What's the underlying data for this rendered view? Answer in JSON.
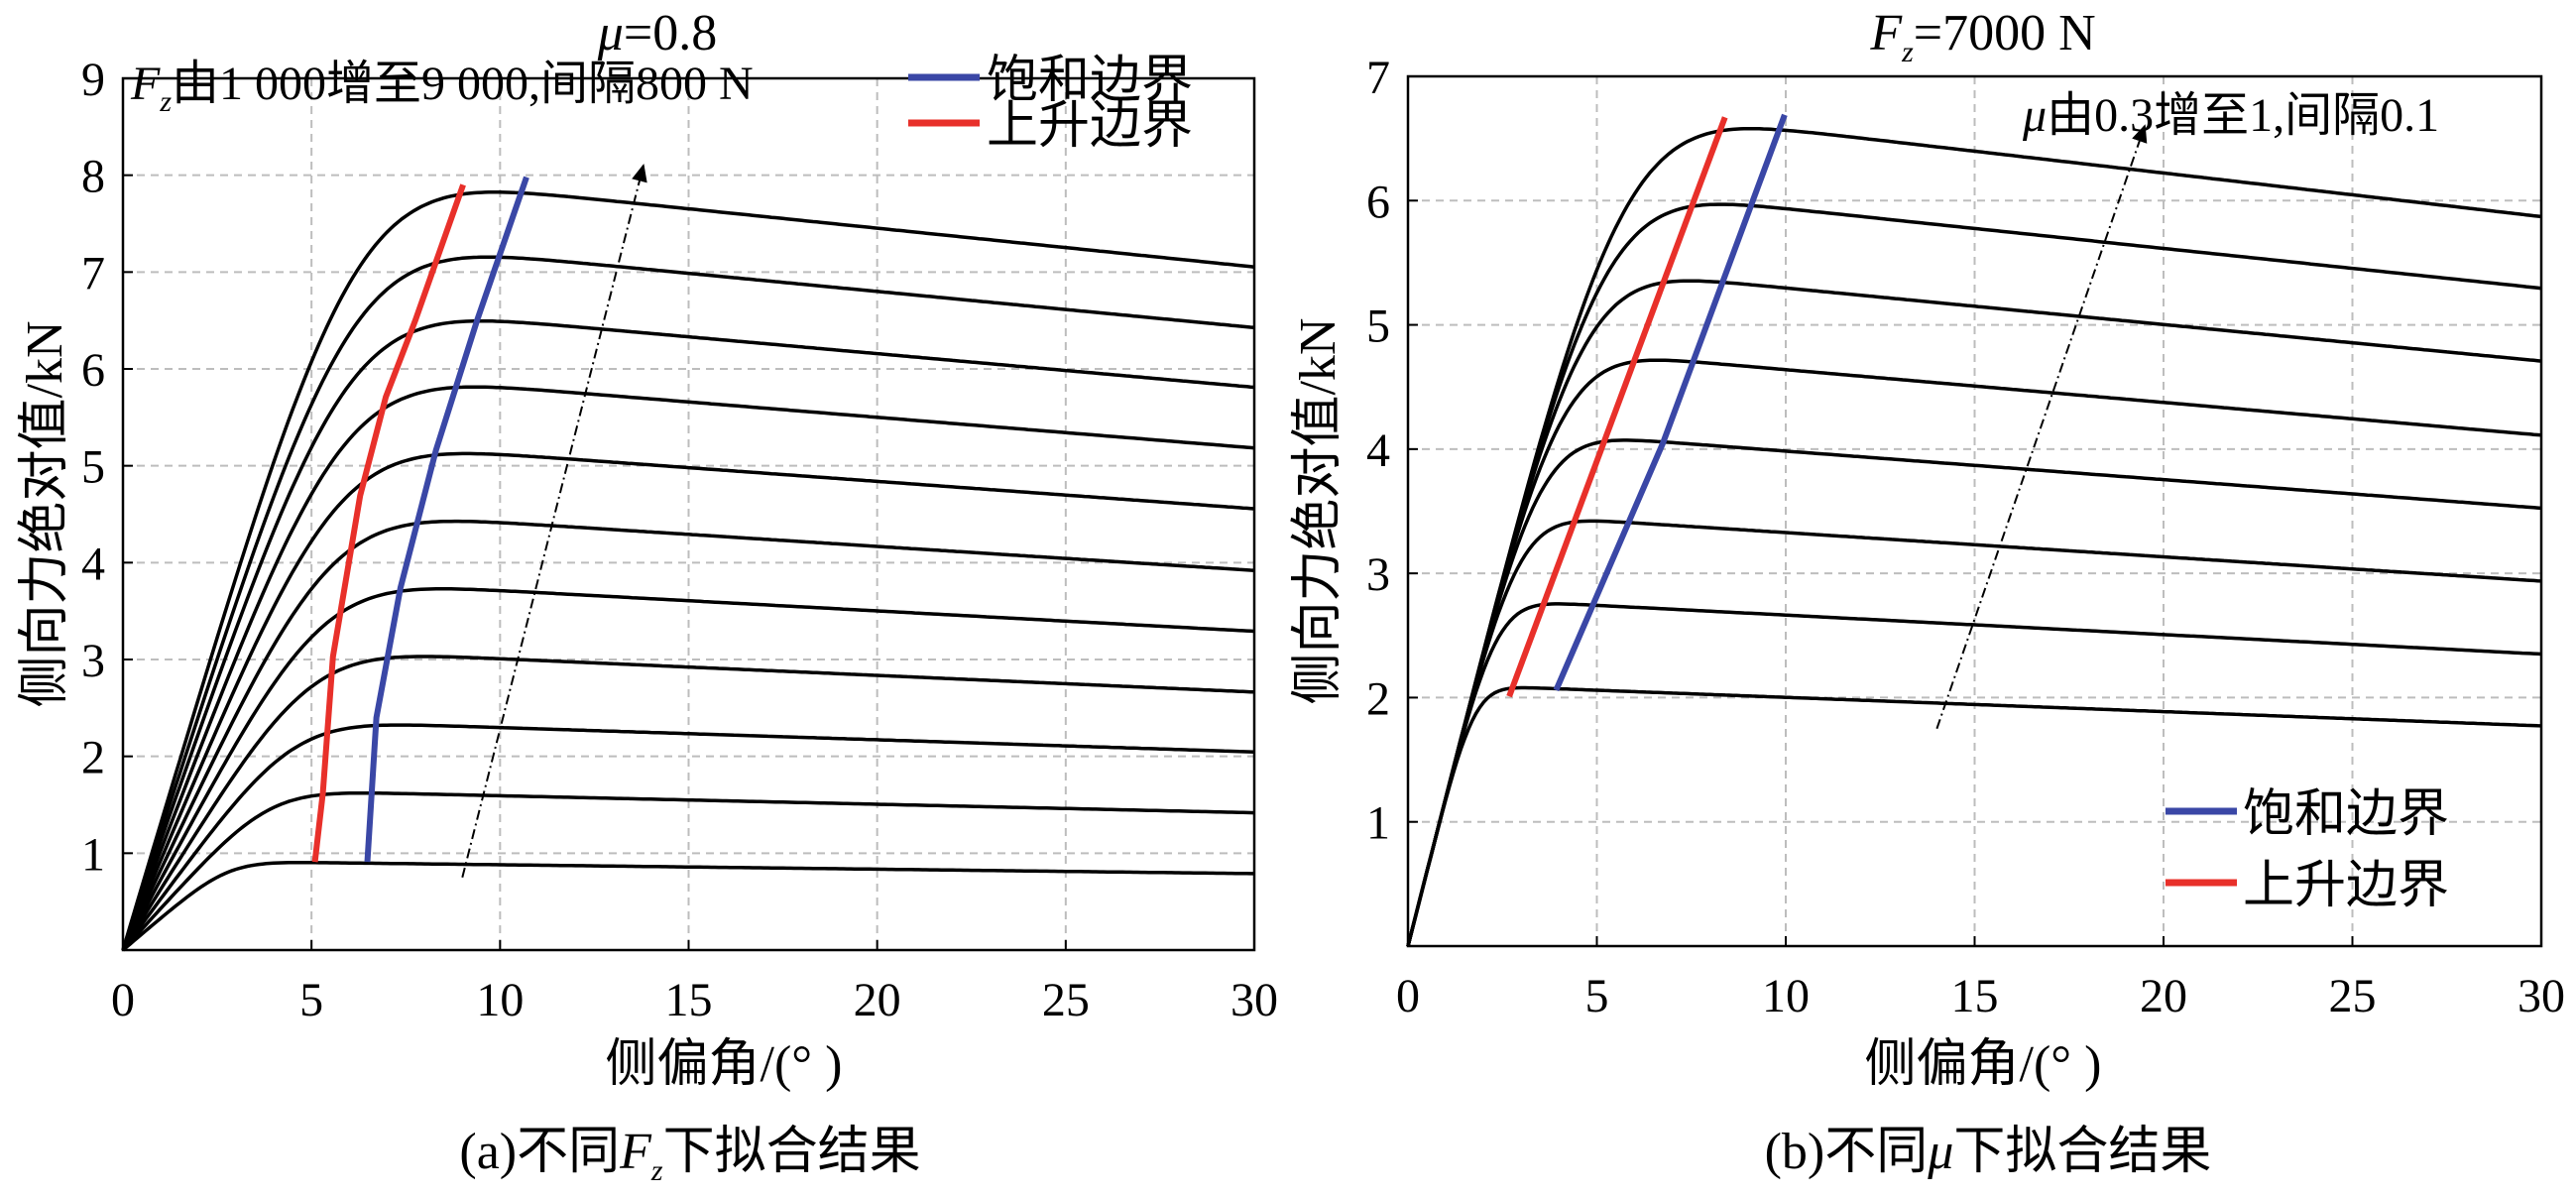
{
  "chart_data": [
    {
      "type": "line",
      "title": "μ=0.8",
      "title_symbol": "μ",
      "title_value": "=0.8",
      "xlabel": "侧偏角/(°  )",
      "ylabel": "侧向力绝对值/kN",
      "caption_prefix": "(a)不同",
      "caption_symbol": "F",
      "caption_sub": "z",
      "caption_suffix": "下拟合结果",
      "xlim": [
        0,
        30
      ],
      "ylim": [
        0,
        9
      ],
      "xticks": [
        "0",
        "5",
        "10",
        "15",
        "20",
        "25",
        "30"
      ],
      "yticks": [
        "1",
        "2",
        "3",
        "4",
        "5",
        "6",
        "7",
        "8",
        "9"
      ],
      "grid": true,
      "annotation": {
        "symbol": "F",
        "sub": "z",
        "text": "由1 000增至9 000,间隔800 N"
      },
      "arrow": {
        "from": [
          9.0,
          0.75
        ],
        "to": [
          13.8,
          8.1
        ]
      },
      "legend": {
        "placement": "top-right",
        "items": [
          {
            "label": "饱和边界",
            "color": "#3a47a6"
          },
          {
            "label": "上升边界",
            "color": "#e8302a"
          }
        ]
      },
      "curves": {
        "parameter": "Fz (N)",
        "values": [
          1000,
          1800,
          2600,
          3400,
          4200,
          5000,
          5800,
          6600,
          7400,
          8200,
          9000
        ],
        "peak": [
          0.9,
          1.63,
          2.35,
          3.08,
          3.8,
          4.52,
          5.24,
          5.95,
          6.65,
          7.33,
          8.02
        ],
        "at_30deg": [
          0.78,
          1.4,
          2.02,
          2.63,
          3.25,
          3.87,
          4.5,
          5.12,
          5.74,
          6.35,
          6.97
        ],
        "initial_slope": [
          0.33,
          0.43,
          0.53,
          0.63,
          0.73,
          0.83,
          0.93,
          1.03,
          1.13,
          1.22,
          1.31
        ]
      },
      "saturation_boundary": {
        "x": [
          6.48,
          6.72,
          7.36,
          8.3,
          9.39,
          10.7
        ],
        "y": [
          0.91,
          2.4,
          3.74,
          5.16,
          6.5,
          7.98
        ]
      },
      "rise_boundary": {
        "x": [
          5.09,
          5.3,
          5.57,
          6.29,
          6.97,
          7.75,
          9.02
        ],
        "y": [
          0.91,
          1.62,
          3.03,
          4.69,
          5.71,
          6.5,
          7.9
        ]
      }
    },
    {
      "type": "line",
      "title": "Fz=7000 N",
      "title_symbol": "F",
      "title_sub": "z",
      "title_value": "=7000 N",
      "xlabel": "侧偏角/(°  )",
      "ylabel": "侧向力绝对值/kN",
      "caption_prefix": "(b)不同",
      "caption_symbol": "μ",
      "caption_suffix": "下拟合结果",
      "xlim": [
        0,
        30
      ],
      "ylim": [
        0,
        7
      ],
      "xticks": [
        "0",
        "5",
        "10",
        "15",
        "20",
        "25",
        "30"
      ],
      "yticks": [
        "1",
        "2",
        "3",
        "4",
        "5",
        "6",
        "7"
      ],
      "grid": true,
      "annotation": {
        "symbol": "μ",
        "text": "由0.3增至1,间隔0.1"
      },
      "arrow": {
        "from": [
          14.0,
          1.75
        ],
        "to": [
          19.5,
          6.6
        ]
      },
      "legend": {
        "placement": "bottom-right",
        "items": [
          {
            "label": "饱和边界",
            "color": "#3a47a6"
          },
          {
            "label": "上升边界",
            "color": "#e8302a"
          }
        ]
      },
      "curves": {
        "parameter": "μ",
        "values": [
          0.3,
          0.4,
          0.5,
          0.6,
          0.7,
          0.8,
          0.9,
          1.0
        ],
        "peak": [
          2.05,
          2.73,
          3.41,
          4.08,
          4.75,
          5.42,
          6.07,
          6.72
        ],
        "at_30deg": [
          1.75,
          2.32,
          2.9,
          3.48,
          4.06,
          4.65,
          5.23,
          5.8
        ],
        "initial_slope": [
          1.2,
          1.2,
          1.2,
          1.2,
          1.2,
          1.2,
          1.2,
          1.2
        ]
      },
      "saturation_boundary": {
        "x": [
          3.92,
          6.75,
          9.97
        ],
        "y": [
          2.06,
          4.05,
          6.69
        ]
      },
      "rise_boundary": {
        "x": [
          2.68,
          8.39
        ],
        "y": [
          2.01,
          6.67
        ]
      }
    }
  ]
}
